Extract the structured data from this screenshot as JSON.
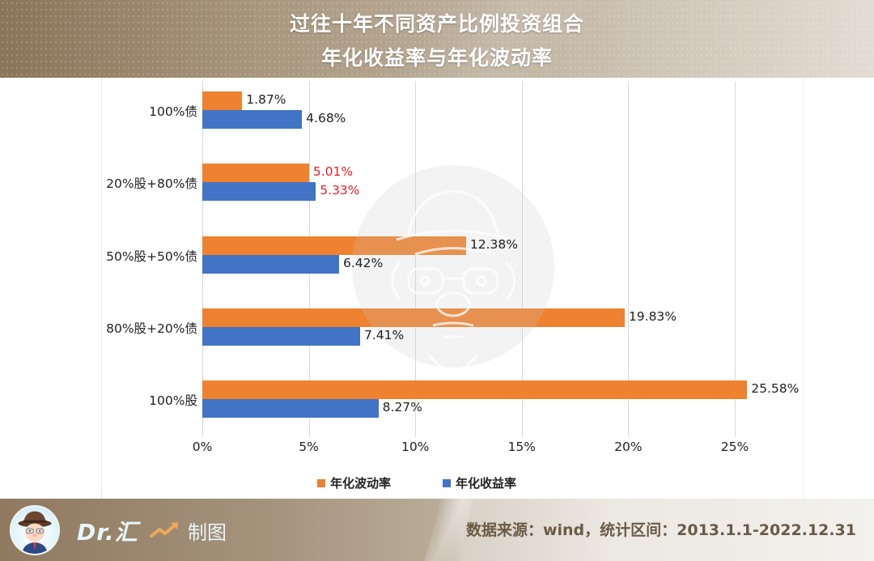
{
  "header": {
    "title_line1": "过往十年不同资产比例投资组合",
    "title_line2": "年化收益率与年化波动率"
  },
  "colors": {
    "volatility": "#ef822e",
    "return": "#4274c6",
    "highlight_label": "#ee1c24",
    "header_bg": "#a8967d",
    "source_text": "#6b5a45"
  },
  "chart_data": {
    "type": "bar",
    "orientation": "horizontal",
    "title": "过往十年不同资产比例投资组合 年化收益率与年化波动率",
    "categories": [
      "100%债",
      "20%股+80%债",
      "50%股+50%债",
      "80%股+20%债",
      "100%股"
    ],
    "series": [
      {
        "name": "年化波动率",
        "color": "#ef822e",
        "values": [
          1.87,
          5.01,
          12.38,
          19.83,
          25.58
        ],
        "labels": [
          "1.87%",
          "5.01%",
          "12.38%",
          "19.83%",
          "25.58%"
        ]
      },
      {
        "name": "年化收益率",
        "color": "#4274c6",
        "values": [
          4.68,
          5.33,
          6.42,
          7.41,
          8.27
        ],
        "labels": [
          "4.68%",
          "5.33%",
          "6.42%",
          "7.41%",
          "8.27%"
        ]
      }
    ],
    "highlighted_category": "20%股+80%债",
    "xlabel": "",
    "ylabel": "",
    "xlim": [
      0,
      25
    ],
    "xticks": [
      "0%",
      "5%",
      "10%",
      "15%",
      "20%",
      "25%"
    ],
    "grid": true,
    "legend_position": "bottom",
    "unit": "%"
  },
  "legend": {
    "items": [
      {
        "label": "年化波动率",
        "color": "#ef822e"
      },
      {
        "label": "年化收益率",
        "color": "#4274c6"
      }
    ]
  },
  "footer": {
    "brand": "Dr.汇",
    "made_by": "制图",
    "source": "数据来源：wind，统计区间：2013.1.1-2022.12.31"
  }
}
